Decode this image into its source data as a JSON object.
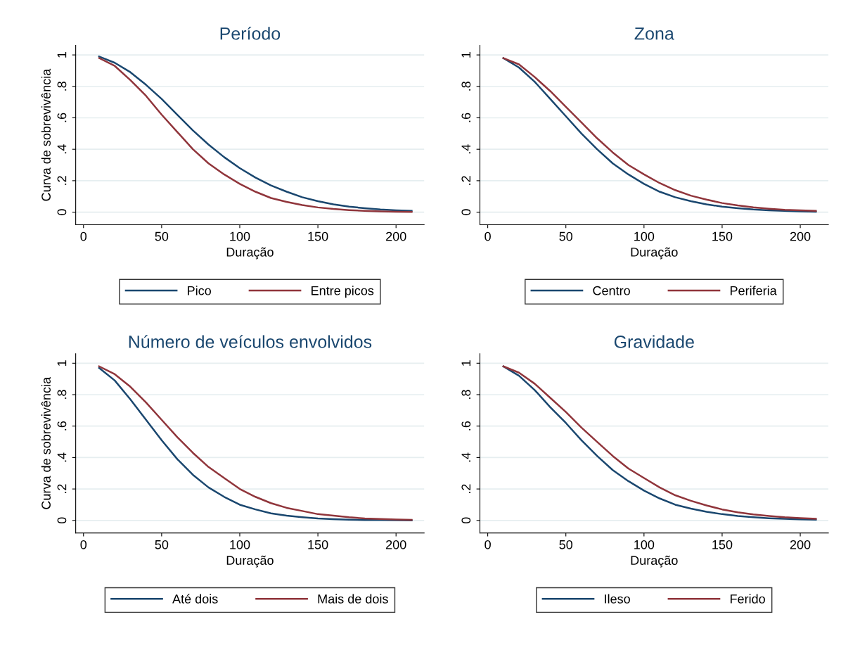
{
  "chart_data": [
    {
      "type": "line",
      "title": "Período",
      "xlabel": "Duração",
      "ylabel": "Curva de sobrevivência",
      "x": [
        10,
        20,
        30,
        40,
        50,
        60,
        70,
        80,
        90,
        100,
        110,
        120,
        130,
        140,
        150,
        160,
        170,
        180,
        190,
        200,
        210
      ],
      "xlim": [
        -5,
        218
      ],
      "xticks": [
        0,
        50,
        100,
        150,
        200
      ],
      "ylim": [
        -0.08,
        1.06
      ],
      "yticks": [
        {
          "value": 0,
          "label": "0"
        },
        {
          "value": 0.2,
          "label": ".2"
        },
        {
          "value": 0.4,
          "label": ".4"
        },
        {
          "value": 0.6,
          "label": ".6"
        },
        {
          "value": 0.8,
          "label": ".8"
        },
        {
          "value": 1,
          "label": "1"
        }
      ],
      "grid": "y",
      "legend": "bottom",
      "series": [
        {
          "name": "Pico",
          "color": "#1a476f",
          "values": [
            0.99,
            0.95,
            0.89,
            0.81,
            0.72,
            0.62,
            0.52,
            0.43,
            0.35,
            0.28,
            0.22,
            0.17,
            0.13,
            0.095,
            0.07,
            0.05,
            0.035,
            0.025,
            0.017,
            0.012,
            0.008
          ]
        },
        {
          "name": "Entre picos",
          "color": "#90353b",
          "values": [
            0.98,
            0.93,
            0.84,
            0.74,
            0.62,
            0.51,
            0.4,
            0.31,
            0.24,
            0.18,
            0.13,
            0.09,
            0.065,
            0.045,
            0.03,
            0.02,
            0.013,
            0.008,
            0.005,
            0.003,
            0.002
          ]
        }
      ]
    },
    {
      "type": "line",
      "title": "Zona",
      "xlabel": "Duração",
      "x": [
        10,
        20,
        30,
        40,
        50,
        60,
        70,
        80,
        90,
        100,
        110,
        120,
        130,
        140,
        150,
        160,
        170,
        180,
        190,
        200,
        210
      ],
      "xlim": [
        -5,
        218
      ],
      "xticks": [
        0,
        50,
        100,
        150,
        200
      ],
      "ylim": [
        -0.08,
        1.06
      ],
      "yticks": [
        {
          "value": 0,
          "label": "0"
        },
        {
          "value": 0.2,
          "label": ".2"
        },
        {
          "value": 0.4,
          "label": ".4"
        },
        {
          "value": 0.6,
          "label": ".6"
        },
        {
          "value": 0.8,
          "label": ".8"
        },
        {
          "value": 1,
          "label": "1"
        }
      ],
      "grid": "y",
      "legend": "bottom",
      "series": [
        {
          "name": "Centro",
          "color": "#1a476f",
          "values": [
            0.98,
            0.92,
            0.83,
            0.72,
            0.61,
            0.5,
            0.4,
            0.31,
            0.24,
            0.18,
            0.13,
            0.095,
            0.07,
            0.05,
            0.035,
            0.025,
            0.017,
            0.012,
            0.008,
            0.005,
            0.003
          ]
        },
        {
          "name": "Periferia",
          "color": "#90353b",
          "values": [
            0.98,
            0.94,
            0.86,
            0.77,
            0.67,
            0.57,
            0.47,
            0.38,
            0.3,
            0.24,
            0.185,
            0.14,
            0.105,
            0.08,
            0.058,
            0.043,
            0.031,
            0.022,
            0.015,
            0.011,
            0.008
          ]
        }
      ]
    },
    {
      "type": "line",
      "title": "Número de veículos envolvidos",
      "xlabel": "Duração",
      "ylabel": "Curva de sobrevivência",
      "x": [
        10,
        20,
        30,
        40,
        50,
        60,
        70,
        80,
        90,
        100,
        110,
        120,
        130,
        140,
        150,
        160,
        170,
        180,
        190,
        200,
        210
      ],
      "xlim": [
        -5,
        218
      ],
      "xticks": [
        0,
        50,
        100,
        150,
        200
      ],
      "ylim": [
        -0.08,
        1.06
      ],
      "yticks": [
        {
          "value": 0,
          "label": "0"
        },
        {
          "value": 0.2,
          "label": ".2"
        },
        {
          "value": 0.4,
          "label": ".4"
        },
        {
          "value": 0.6,
          "label": ".6"
        },
        {
          "value": 0.8,
          "label": ".8"
        },
        {
          "value": 1,
          "label": "1"
        }
      ],
      "grid": "y",
      "legend": "bottom",
      "series": [
        {
          "name": "Até dois",
          "color": "#1a476f",
          "values": [
            0.97,
            0.89,
            0.77,
            0.64,
            0.51,
            0.39,
            0.29,
            0.21,
            0.15,
            0.1,
            0.07,
            0.045,
            0.03,
            0.02,
            0.012,
            0.008,
            0.005,
            0.003,
            0.002,
            0.001,
            0
          ]
        },
        {
          "name": "Mais de dois",
          "color": "#90353b",
          "values": [
            0.98,
            0.93,
            0.85,
            0.75,
            0.64,
            0.53,
            0.43,
            0.34,
            0.27,
            0.2,
            0.15,
            0.11,
            0.08,
            0.06,
            0.04,
            0.03,
            0.02,
            0.013,
            0.009,
            0.006,
            0.004
          ]
        }
      ]
    },
    {
      "type": "line",
      "title": "Gravidade",
      "xlabel": "Duração",
      "x": [
        10,
        20,
        30,
        40,
        50,
        60,
        70,
        80,
        90,
        100,
        110,
        120,
        130,
        140,
        150,
        160,
        170,
        180,
        190,
        200,
        210
      ],
      "xlim": [
        -5,
        218
      ],
      "xticks": [
        0,
        50,
        100,
        150,
        200
      ],
      "ylim": [
        -0.08,
        1.06
      ],
      "yticks": [
        {
          "value": 0,
          "label": "0"
        },
        {
          "value": 0.2,
          "label": ".2"
        },
        {
          "value": 0.4,
          "label": ".4"
        },
        {
          "value": 0.6,
          "label": ".6"
        },
        {
          "value": 0.8,
          "label": ".8"
        },
        {
          "value": 1,
          "label": "1"
        }
      ],
      "grid": "y",
      "legend": "bottom",
      "series": [
        {
          "name": "Ileso",
          "color": "#1a476f",
          "values": [
            0.98,
            0.92,
            0.83,
            0.72,
            0.62,
            0.51,
            0.41,
            0.32,
            0.25,
            0.19,
            0.14,
            0.1,
            0.075,
            0.055,
            0.04,
            0.028,
            0.02,
            0.014,
            0.01,
            0.007,
            0.005
          ]
        },
        {
          "name": "Ferido",
          "color": "#90353b",
          "values": [
            0.98,
            0.94,
            0.87,
            0.78,
            0.69,
            0.59,
            0.5,
            0.41,
            0.33,
            0.27,
            0.21,
            0.16,
            0.125,
            0.095,
            0.07,
            0.052,
            0.038,
            0.028,
            0.02,
            0.015,
            0.011
          ]
        }
      ]
    }
  ]
}
